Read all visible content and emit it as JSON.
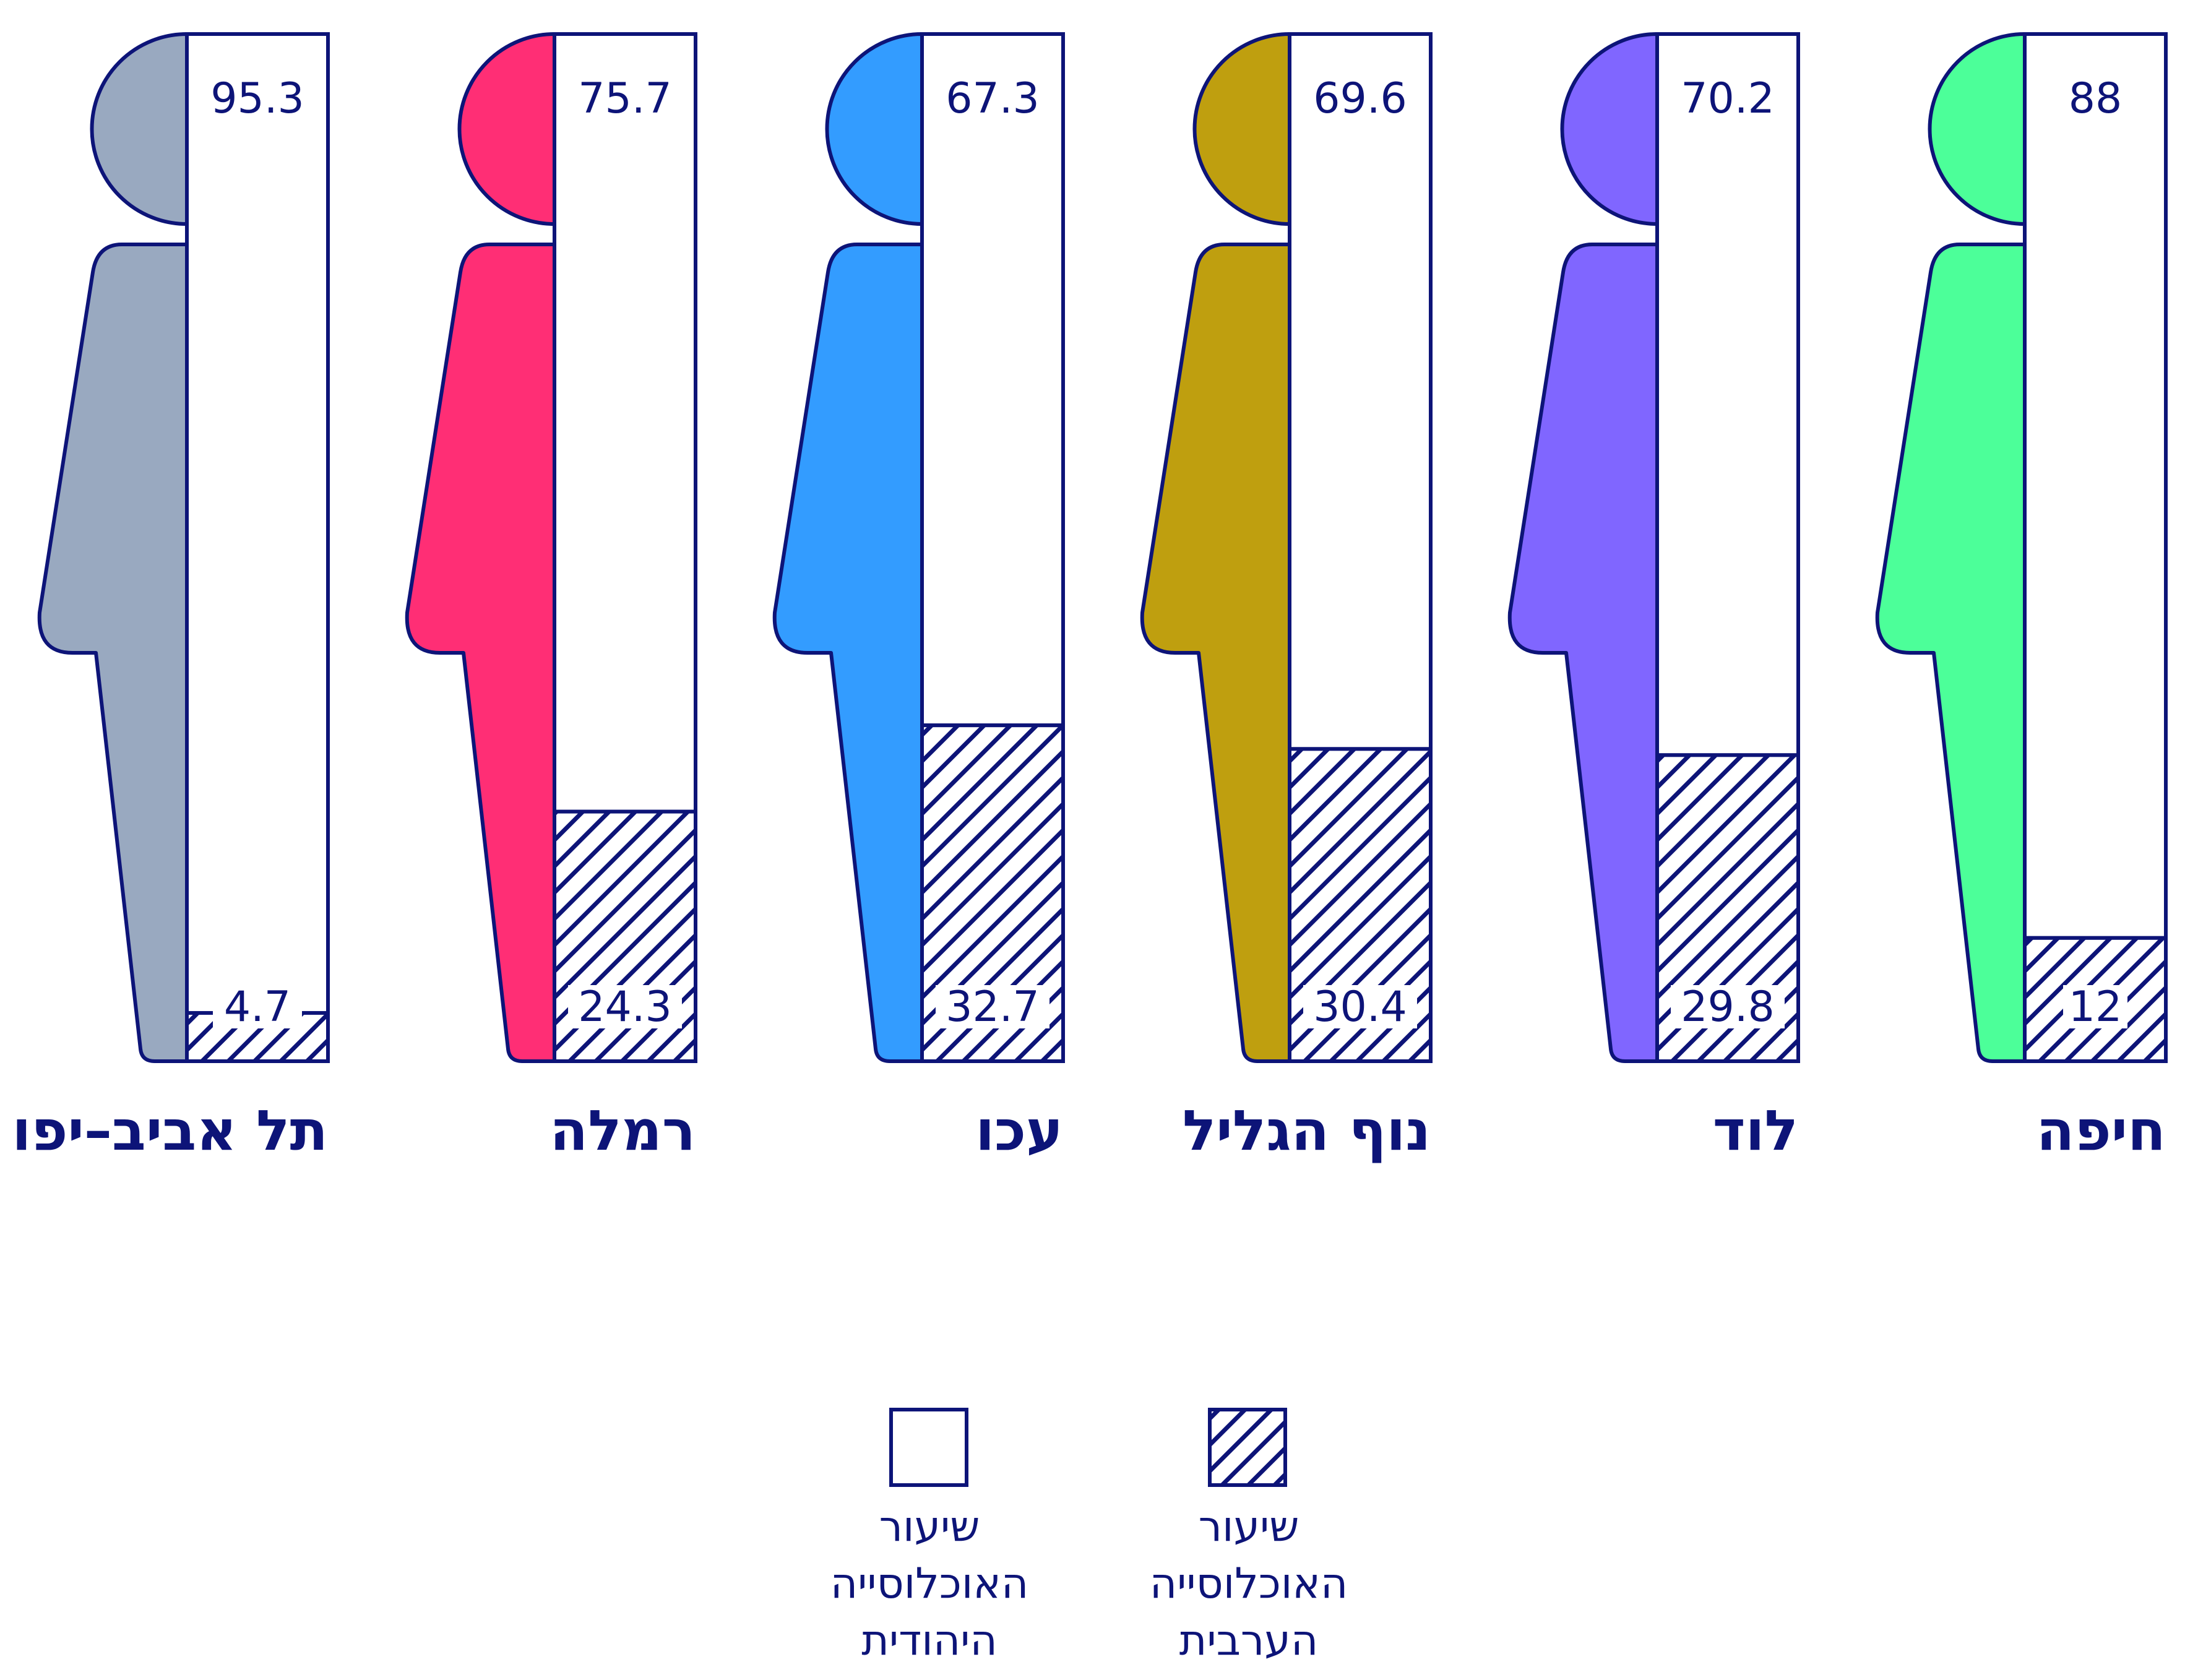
{
  "chart_data": {
    "type": "bar",
    "stacked": true,
    "title": "",
    "xlabel": "",
    "ylabel": "",
    "ylim": [
      0,
      100
    ],
    "categories": [
      "חיפה",
      "לוד",
      "נוף הגליל",
      "עכו",
      "רמלה",
      "תל אביב–יפו"
    ],
    "series": [
      {
        "name": "שיעור האוכלוסייה היהודית",
        "pattern": "plain",
        "values": [
          88,
          70.2,
          69.6,
          67.3,
          75.7,
          95.3
        ]
      },
      {
        "name": "שיעור האוכלוסייה הערבית",
        "pattern": "hatched",
        "values": [
          12,
          29.8,
          30.4,
          32.7,
          24.3,
          4.7
        ]
      }
    ],
    "figure_colors": [
      "#4cff99",
      "#8066ff",
      "#bf9f0f",
      "#339cff",
      "#ff2e75",
      "#99a9c0"
    ],
    "stroke_color": "#0d1478",
    "legend": {
      "placement": "bottom-center",
      "items": [
        {
          "pattern": "hatched",
          "lines": [
            "שיעור",
            "האוכלוסייה",
            "הערבית"
          ]
        },
        {
          "pattern": "plain",
          "lines": [
            "שיעור",
            "האוכלוסייה",
            "היהודית"
          ]
        }
      ]
    }
  }
}
